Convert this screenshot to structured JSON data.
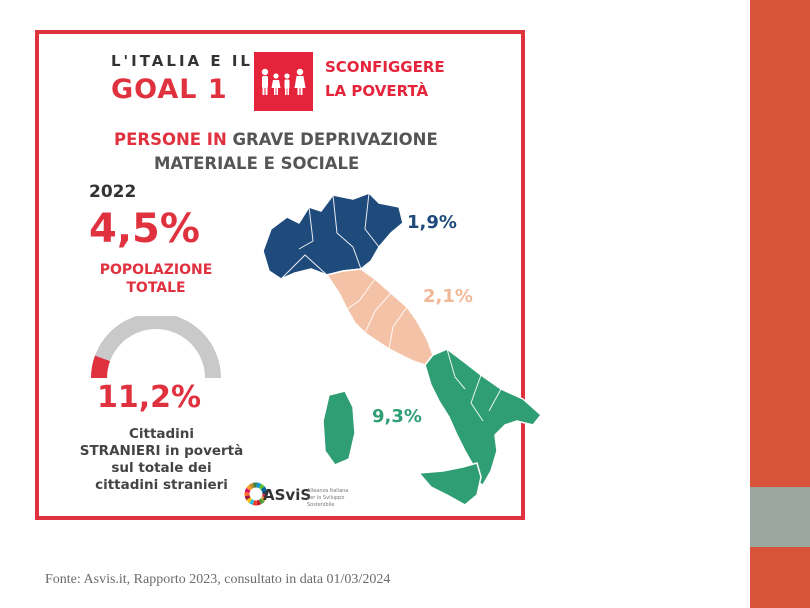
{
  "header": {
    "line1": "L'ITALIA E IL",
    "line2": "GOAL 1",
    "goal_line1": "SCONFIGGERE",
    "goal_line2": "LA POVERTÀ",
    "goal_color": "#e5243b",
    "goal_icon": "family-icon"
  },
  "subtitle": {
    "part1": "PERSONE IN ",
    "part2": "GRAVE DEPRIVAZIONE",
    "line2": "MATERIALE E SOCIALE"
  },
  "stat_total": {
    "year": "2022",
    "value": "4,5%",
    "label_line1": "POPOLAZIONE",
    "label_line2": "TOTALE"
  },
  "stat_foreigners": {
    "value": "11,2%",
    "gauge_fraction": 0.112,
    "label_line1": "Cittadini",
    "label_line2": "STRANIERI in povertà",
    "label_line3": "sul totale dei",
    "label_line4": "cittadini stranieri"
  },
  "map": {
    "north": {
      "value": "1,9%",
      "color": "#1f4a7c"
    },
    "center": {
      "value": "2,1%",
      "color": "#f4c2a6"
    },
    "south": {
      "value": "9,3%",
      "color": "#2f9e75"
    }
  },
  "logo": {
    "name": "ASviS",
    "sub1": "Alleanza Italiana",
    "sub2": "per lo Sviluppo",
    "sub3": "Sostenibile"
  },
  "source": "Fonte: Asvis.it, Rapporto 2023, consultato in data 01/03/2024"
}
